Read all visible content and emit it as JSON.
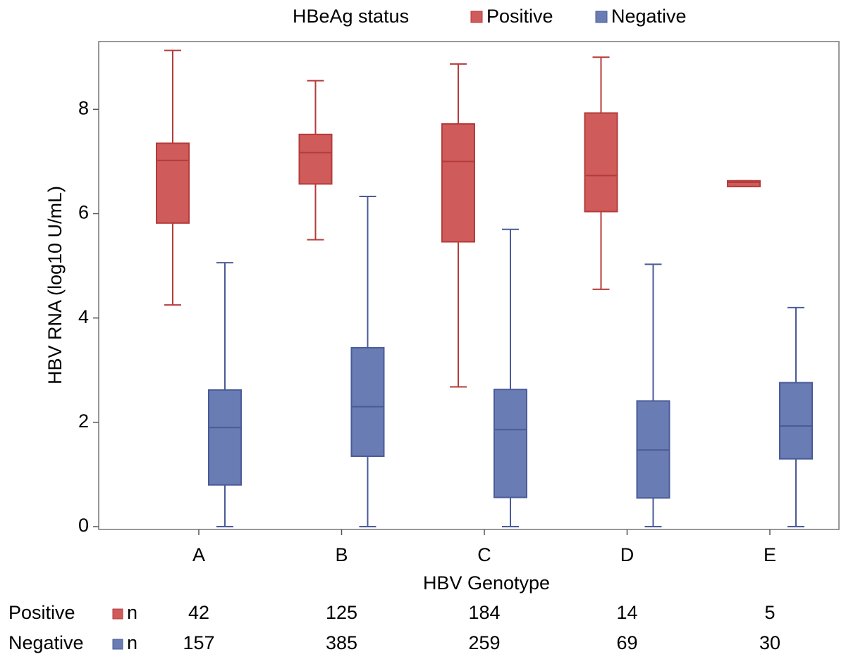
{
  "chart_data": {
    "type": "box",
    "legend_title": "HBeAg status",
    "x_label": "HBV Genotype",
    "y_label": "HBV RNA (log10 U/mL)",
    "categories": [
      "A",
      "B",
      "C",
      "D",
      "E"
    ],
    "ylim": [
      0,
      9.3
    ],
    "yticks": [
      0,
      2,
      4,
      6,
      8
    ],
    "count_label": "n",
    "series": [
      {
        "name": "Positive",
        "color": "#d05b5b",
        "edge": "#b53b3b",
        "min": [
          4.25,
          5.5,
          2.68,
          4.55,
          6.52
        ],
        "q1": [
          5.82,
          6.57,
          5.46,
          6.04,
          6.52
        ],
        "median": [
          7.02,
          7.17,
          7.0,
          6.73,
          6.6
        ],
        "q3": [
          7.35,
          7.52,
          7.72,
          7.93,
          6.63
        ],
        "max": [
          9.13,
          8.55,
          8.87,
          9.0,
          6.63
        ],
        "n": [
          42,
          125,
          184,
          14,
          5
        ]
      },
      {
        "name": "Negative",
        "color": "#6a7cb4",
        "edge": "#4a5b98",
        "min": [
          0,
          0,
          0,
          0,
          0
        ],
        "q1": [
          0.8,
          1.35,
          0.56,
          0.55,
          1.3
        ],
        "median": [
          1.9,
          2.3,
          1.86,
          1.47,
          1.93
        ],
        "q3": [
          2.62,
          3.43,
          2.63,
          2.41,
          2.76
        ],
        "max": [
          5.06,
          6.33,
          5.7,
          5.03,
          4.2
        ],
        "n": [
          157,
          385,
          259,
          69,
          30
        ]
      }
    ]
  }
}
